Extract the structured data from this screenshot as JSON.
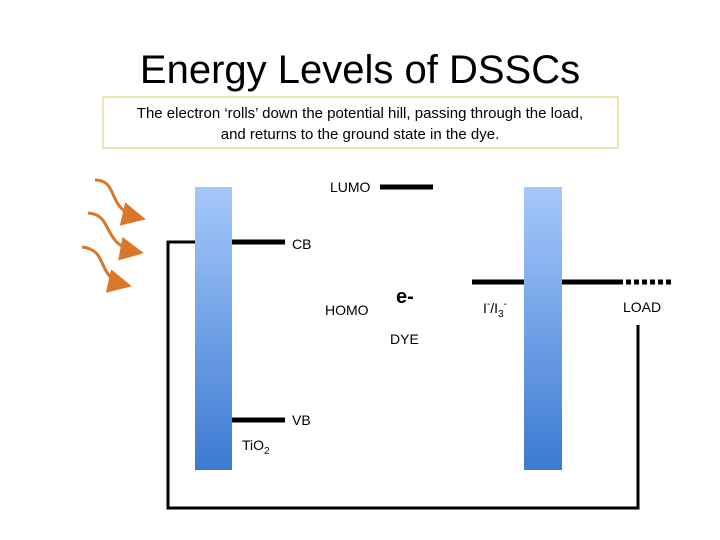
{
  "header": {
    "title": "Energy Levels of DSSCs",
    "caption_lines": [
      "The electron ‘rolls’ down the potential hill, passing through the load,",
      "and returns to the ground state in the dye."
    ]
  },
  "labels": {
    "lumo": "LUMO",
    "cb": "CB",
    "homo": "HOMO",
    "electron": "e-",
    "dye": "DYE",
    "redox": [
      "I",
      "-",
      "/I",
      "3",
      "-"
    ],
    "load": "LOAD",
    "vb": "VB",
    "tio2": [
      "TiO",
      "2"
    ]
  }
}
